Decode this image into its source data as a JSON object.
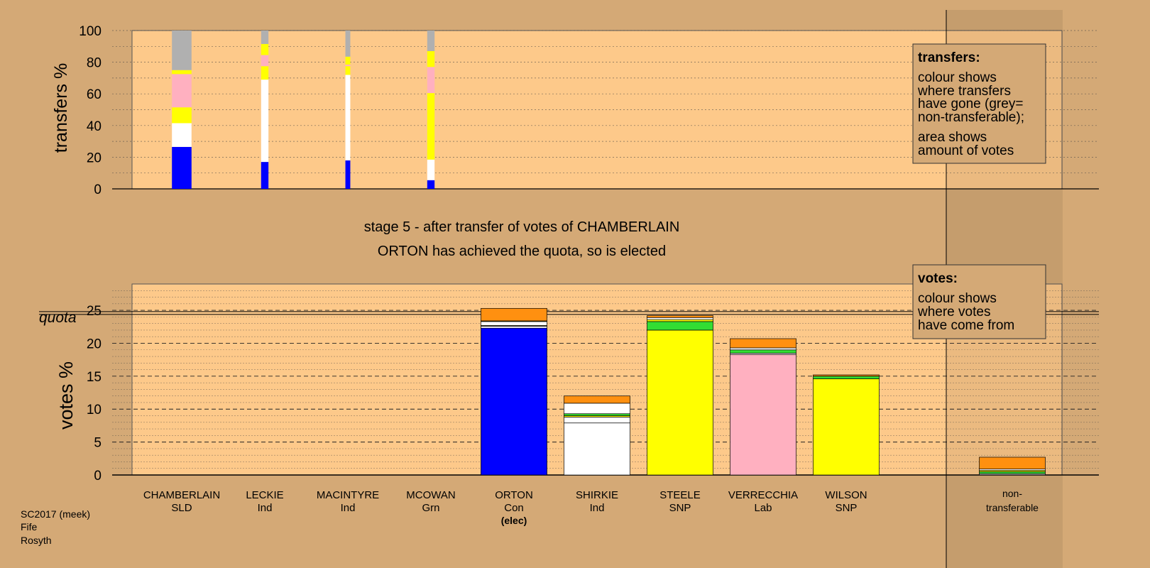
{
  "colors": {
    "background": "#d4a976",
    "panel": "#fdc98a",
    "legend_box": "#d4a976",
    "Con": "#0000ff",
    "Ind": "#ffffff",
    "SNP": "#ffff00",
    "Lab": "#ffb0c0",
    "Grn": "#33dd33",
    "SLD": "#ff9010",
    "nontransferable": "#b0b0b0"
  },
  "header": {
    "stage": "stage 5 - after transfer of votes of CHAMBERLAIN",
    "status": "ORTON has achieved the quota, so is elected"
  },
  "legend_transfers": {
    "title": "transfers:",
    "line1": "colour shows",
    "line2": "where transfers",
    "line3": "have gone (grey=",
    "line4": "non-transferable);",
    "line5": "area shows",
    "line6": "amount of votes"
  },
  "legend_votes": {
    "title": "votes:",
    "line1": "colour shows",
    "line2": "where votes",
    "line3": "have come from"
  },
  "footer": {
    "line1": "SC2017 (meek)",
    "line2": "Fife",
    "line3": "Rosyth"
  },
  "chart_data": [
    {
      "type": "bar",
      "name": "transfers",
      "ylabel": "transfers %",
      "ylim": [
        0,
        100
      ],
      "yticks": [
        0,
        20,
        40,
        60,
        80,
        100
      ],
      "bars": [
        {
          "index": 0,
          "width_votes": 2.4,
          "segments": [
            {
              "party": "Con",
              "value": 26.5
            },
            {
              "party": "Ind",
              "value": 15
            },
            {
              "party": "SNP",
              "value": 10
            },
            {
              "party": "Lab",
              "value": 21
            },
            {
              "party": "SNP",
              "value": 2.5
            },
            {
              "party": "nontransferable",
              "value": 25
            }
          ]
        },
        {
          "index": 1,
          "width_votes": 0.9,
          "segments": [
            {
              "party": "Con",
              "value": 17
            },
            {
              "party": "Ind",
              "value": 52
            },
            {
              "party": "SNP",
              "value": 8.5
            },
            {
              "party": "Lab",
              "value": 7
            },
            {
              "party": "SNP",
              "value": 7
            },
            {
              "party": "nontransferable",
              "value": 8.5
            }
          ]
        },
        {
          "index": 2,
          "width_votes": 0.6,
          "segments": [
            {
              "party": "Con",
              "value": 18
            },
            {
              "party": "Ind",
              "value": 54
            },
            {
              "party": "SNP",
              "value": 5.5
            },
            {
              "party": "Lab",
              "value": 1
            },
            {
              "party": "SNP",
              "value": 5
            },
            {
              "party": "nontransferable",
              "value": 16.5
            }
          ]
        },
        {
          "index": 3,
          "width_votes": 0.9,
          "segments": [
            {
              "party": "Con",
              "value": 5.5
            },
            {
              "party": "Ind",
              "value": 13
            },
            {
              "party": "SNP",
              "value": 42
            },
            {
              "party": "Lab",
              "value": 16.5
            },
            {
              "party": "SNP",
              "value": 10
            },
            {
              "party": "nontransferable",
              "value": 13
            }
          ]
        }
      ]
    },
    {
      "type": "bar",
      "name": "votes",
      "ylabel": "votes %",
      "ylim": [
        0,
        25
      ],
      "yticks": [
        0,
        5,
        10,
        15,
        20,
        25
      ],
      "quota": 24.6,
      "quota_label": "quota",
      "categories": [
        {
          "name": "CHAMBERLAIN",
          "party": "SLD",
          "note": ""
        },
        {
          "name": "LECKIE",
          "party": "Ind",
          "note": ""
        },
        {
          "name": "MACINTYRE",
          "party": "Ind",
          "note": ""
        },
        {
          "name": "MCOWAN",
          "party": "Grn",
          "note": ""
        },
        {
          "name": "ORTON",
          "party": "Con",
          "note": "(elec)"
        },
        {
          "name": "SHIRKIE",
          "party": "Ind",
          "note": ""
        },
        {
          "name": "STEELE",
          "party": "SNP",
          "note": ""
        },
        {
          "name": "VERRECCHIA",
          "party": "Lab",
          "note": ""
        },
        {
          "name": "WILSON",
          "party": "SNP",
          "note": ""
        }
      ],
      "nontransferable_label_1": "non-",
      "nontransferable_label_2": "transferable",
      "stacks": [
        [],
        [],
        [],
        [],
        [
          {
            "party": "Con",
            "value": 22.3
          },
          {
            "party": "Ind",
            "value": 0.3
          },
          {
            "party": "SNP",
            "value": 0.1
          },
          {
            "party": "Ind",
            "value": 0.6
          },
          {
            "party": "SNP",
            "value": 0.1
          },
          {
            "party": "SLD",
            "value": 1.9
          }
        ],
        [
          {
            "party": "Ind",
            "value": 7.9
          },
          {
            "party": "Ind",
            "value": 0.9
          },
          {
            "party": "SNP",
            "value": 0.2
          },
          {
            "party": "Grn",
            "value": 0.3
          },
          {
            "party": "Ind",
            "value": 1.6
          },
          {
            "party": "SLD",
            "value": 1.1
          }
        ],
        [
          {
            "party": "SNP",
            "value": 22
          },
          {
            "party": "Grn",
            "value": 1.3
          },
          {
            "party": "SNP",
            "value": 0.3
          },
          {
            "party": "Ind",
            "value": 0.3
          },
          {
            "party": "SLD",
            "value": 0.3
          }
        ],
        [
          {
            "party": "Lab",
            "value": 18.3
          },
          {
            "party": "Ind",
            "value": 0.2
          },
          {
            "party": "Grn",
            "value": 0.5
          },
          {
            "party": "Ind",
            "value": 0.3
          },
          {
            "party": "SLD",
            "value": 1.4
          }
        ],
        [
          {
            "party": "SNP",
            "value": 14.6
          },
          {
            "party": "Grn",
            "value": 0.4
          },
          {
            "party": "SLD",
            "value": 0.2
          }
        ]
      ],
      "nontransferable_stack": [
        {
          "party": "nontransferable",
          "value": 0.2
        },
        {
          "party": "Grn",
          "value": 0.3
        },
        {
          "party": "SNP",
          "value": 0.2
        },
        {
          "party": "Ind",
          "value": 0.2
        },
        {
          "party": "SLD",
          "value": 1.8
        }
      ]
    }
  ]
}
